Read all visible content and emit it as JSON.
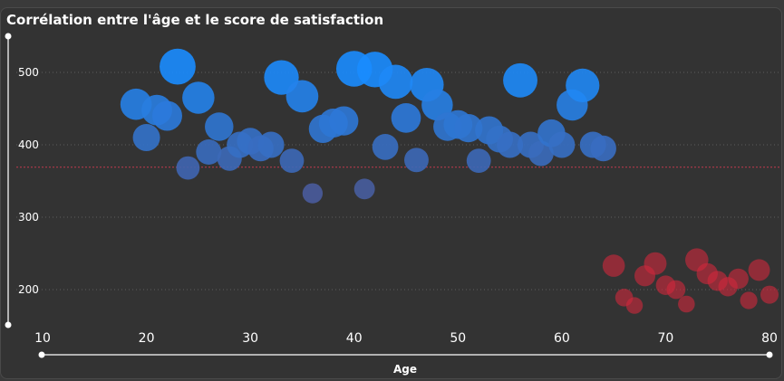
{
  "chart_data": {
    "type": "scatter",
    "title": "Corrélation entre l'âge et le score de satisfaction",
    "xlabel": "Age",
    "ylabel": "",
    "xlim": [
      10,
      80
    ],
    "ylim": [
      150,
      550
    ],
    "x_ticks": [
      10,
      20,
      30,
      40,
      50,
      60,
      70,
      80
    ],
    "y_ticks": [
      200,
      300,
      400,
      500
    ],
    "grid": true,
    "reference_line_y": 369,
    "colors": {
      "high": "#1a8cff",
      "mid": "#4a5a9a",
      "low": "#d0283c",
      "reference_line": "#c23b4e"
    },
    "points": [
      {
        "x": 19,
        "y": 456
      },
      {
        "x": 20,
        "y": 410
      },
      {
        "x": 21,
        "y": 448
      },
      {
        "x": 22,
        "y": 440
      },
      {
        "x": 23,
        "y": 508
      },
      {
        "x": 24,
        "y": 368
      },
      {
        "x": 25,
        "y": 465
      },
      {
        "x": 26,
        "y": 390
      },
      {
        "x": 27,
        "y": 425
      },
      {
        "x": 28,
        "y": 381
      },
      {
        "x": 29,
        "y": 400
      },
      {
        "x": 30,
        "y": 405
      },
      {
        "x": 31,
        "y": 395
      },
      {
        "x": 32,
        "y": 400
      },
      {
        "x": 33,
        "y": 493
      },
      {
        "x": 34,
        "y": 378
      },
      {
        "x": 35,
        "y": 467
      },
      {
        "x": 36,
        "y": 333
      },
      {
        "x": 37,
        "y": 422
      },
      {
        "x": 38,
        "y": 430
      },
      {
        "x": 39,
        "y": 433
      },
      {
        "x": 40,
        "y": 505
      },
      {
        "x": 41,
        "y": 339
      },
      {
        "x": 42,
        "y": 504
      },
      {
        "x": 43,
        "y": 397
      },
      {
        "x": 44,
        "y": 487
      },
      {
        "x": 45,
        "y": 437
      },
      {
        "x": 46,
        "y": 379
      },
      {
        "x": 47,
        "y": 483
      },
      {
        "x": 48,
        "y": 455
      },
      {
        "x": 49,
        "y": 425
      },
      {
        "x": 50,
        "y": 428
      },
      {
        "x": 51,
        "y": 423
      },
      {
        "x": 52,
        "y": 378
      },
      {
        "x": 53,
        "y": 420
      },
      {
        "x": 54,
        "y": 408
      },
      {
        "x": 55,
        "y": 400
      },
      {
        "x": 56,
        "y": 489
      },
      {
        "x": 57,
        "y": 400
      },
      {
        "x": 58,
        "y": 388
      },
      {
        "x": 59,
        "y": 416
      },
      {
        "x": 60,
        "y": 400
      },
      {
        "x": 61,
        "y": 455
      },
      {
        "x": 62,
        "y": 482
      },
      {
        "x": 63,
        "y": 400
      },
      {
        "x": 64,
        "y": 395
      },
      {
        "x": 65,
        "y": 233
      },
      {
        "x": 66,
        "y": 189
      },
      {
        "x": 67,
        "y": 178
      },
      {
        "x": 68,
        "y": 219
      },
      {
        "x": 69,
        "y": 236
      },
      {
        "x": 70,
        "y": 206
      },
      {
        "x": 71,
        "y": 200
      },
      {
        "x": 72,
        "y": 180
      },
      {
        "x": 73,
        "y": 241
      },
      {
        "x": 74,
        "y": 222
      },
      {
        "x": 75,
        "y": 212
      },
      {
        "x": 76,
        "y": 204
      },
      {
        "x": 77,
        "y": 215
      },
      {
        "x": 78,
        "y": 185
      },
      {
        "x": 79,
        "y": 227
      },
      {
        "x": 80,
        "y": 193
      }
    ]
  }
}
